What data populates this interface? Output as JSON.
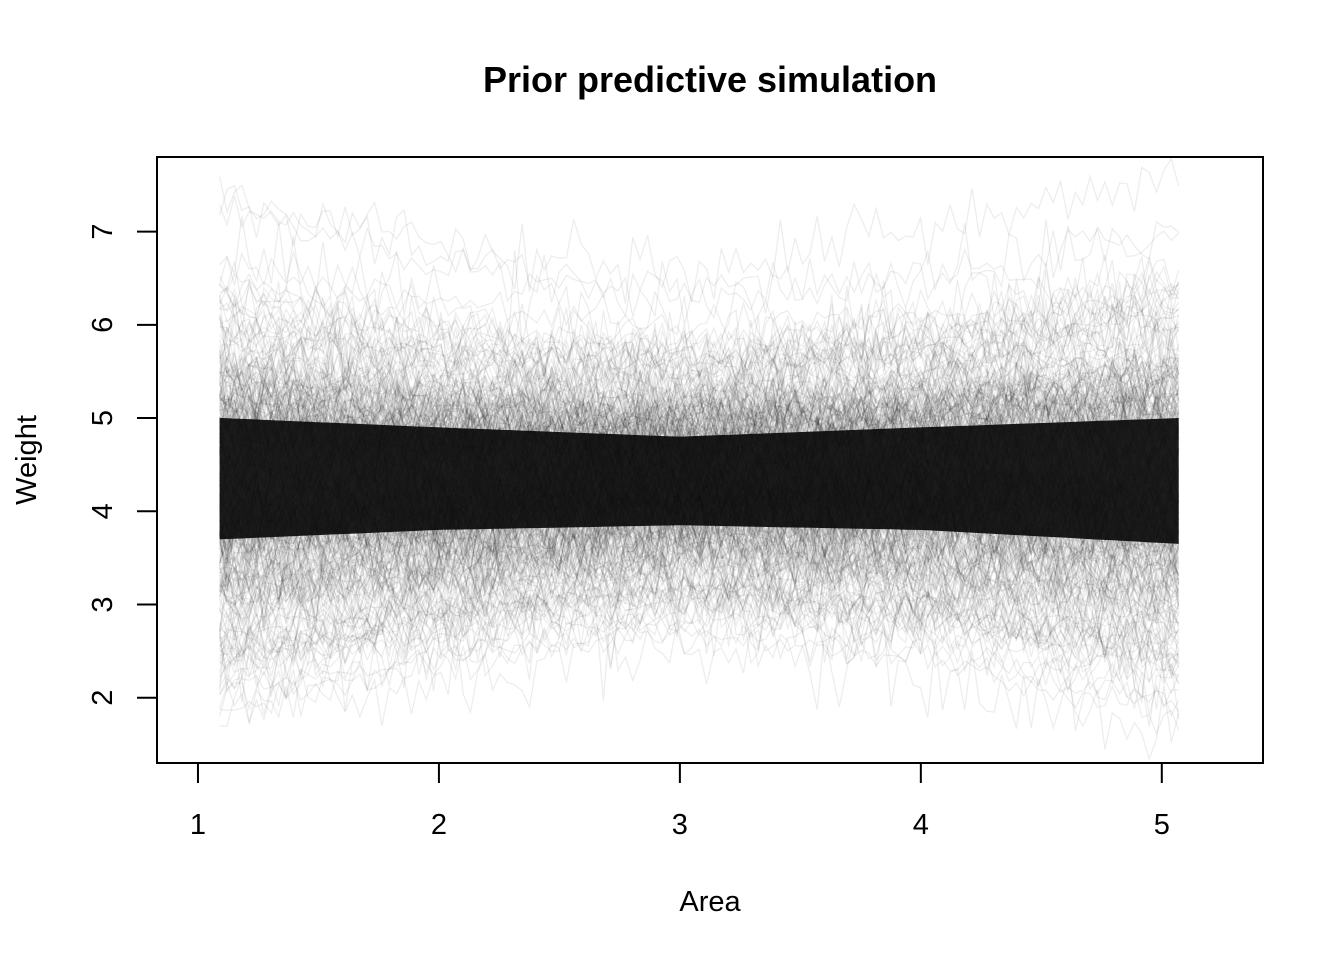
{
  "chart_data": {
    "type": "line",
    "title": "Prior predictive simulation",
    "xlabel": "Area",
    "ylabel": "Weight",
    "xlim": [
      0.83,
      5.42
    ],
    "ylim": [
      1.3,
      7.8
    ],
    "x_ticks": [
      1,
      2,
      3,
      4,
      5
    ],
    "y_ticks": [
      2,
      3,
      4,
      5,
      6,
      7
    ],
    "x_data_range": [
      1.09,
      5.07
    ],
    "grid": false,
    "legend": "none",
    "line_color": "#000000",
    "envelope_summary": [
      {
        "x": 1.1,
        "min": 1.4,
        "p05": 2.7,
        "p25": 3.7,
        "median": 4.3,
        "p75": 5.0,
        "p95": 6.0,
        "max": 7.0
      },
      {
        "x": 2.0,
        "min": 1.6,
        "p05": 3.0,
        "p25": 3.8,
        "median": 4.3,
        "p75": 4.9,
        "p95": 5.7,
        "max": 6.8
      },
      {
        "x": 3.0,
        "min": 2.0,
        "p05": 3.2,
        "p25": 3.85,
        "median": 4.35,
        "p75": 4.8,
        "p95": 5.5,
        "max": 6.7
      },
      {
        "x": 4.0,
        "min": 1.8,
        "p05": 3.0,
        "p25": 3.8,
        "median": 4.35,
        "p75": 4.9,
        "p95": 5.7,
        "max": 6.8
      },
      {
        "x": 5.07,
        "min": 1.3,
        "p05": 2.6,
        "p25": 3.65,
        "median": 4.3,
        "p75": 5.0,
        "p95": 6.1,
        "max": 7.1
      }
    ]
  }
}
